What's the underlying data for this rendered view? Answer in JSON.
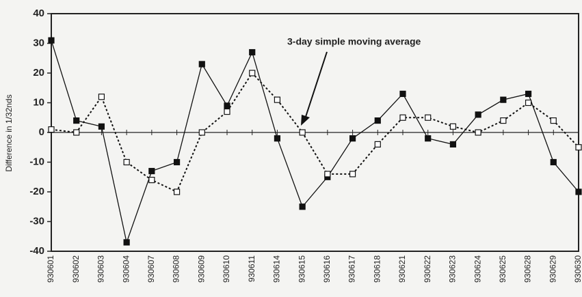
{
  "chart_data": {
    "type": "line",
    "y_label": "Difference in 1/32nds",
    "annotation": "3-day simple moving average",
    "categories": [
      "930601",
      "930602",
      "930603",
      "930604",
      "930607",
      "930608",
      "930609",
      "930610",
      "930611",
      "930614",
      "930615",
      "930616",
      "930617",
      "930618",
      "930621",
      "930622",
      "930623",
      "930624",
      "930625",
      "930628",
      "930629",
      "930630"
    ],
    "series": [
      {
        "color": "#111111",
        "style": "solid",
        "values": [
          31,
          4,
          2,
          -37,
          -13,
          -10,
          23,
          9,
          27,
          -2,
          -25,
          -15,
          -2,
          4,
          13,
          -2,
          -4,
          6,
          11,
          13,
          -10,
          -20
        ]
      },
      {
        "color": "#111111",
        "style": "dotted",
        "values": [
          1,
          0,
          12,
          -10,
          -16,
          -20,
          0,
          7,
          20,
          11,
          0,
          -14,
          -14,
          -4,
          5,
          5,
          2,
          0,
          4,
          10,
          4,
          -5
        ]
      }
    ],
    "ylim": [
      -40,
      40
    ],
    "yticks": [
      -40,
      -30,
      -20,
      -10,
      0,
      10,
      20,
      30,
      40
    ]
  }
}
